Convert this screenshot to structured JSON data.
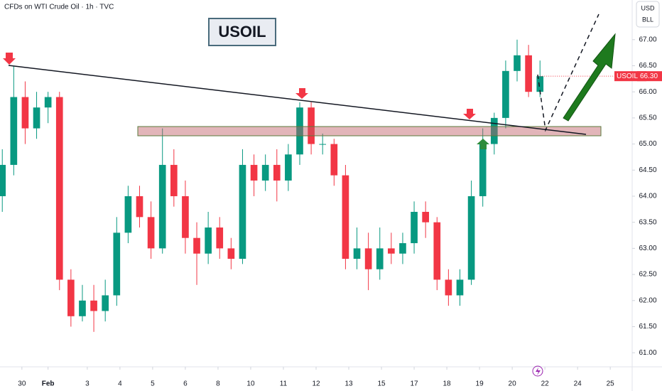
{
  "chart_data": {
    "type": "candlestick",
    "title": "CFDs on WTI Crude Oil · 1h · TVC",
    "symbol": "USOIL",
    "currency": "USD",
    "unit": "BLL",
    "last_price": {
      "value": 66.3,
      "label": "66.30"
    },
    "up_color": "#089981",
    "down_color": "#f23645",
    "xlim": [
      -0.67,
      18.67
    ],
    "xticks": [
      {
        "value": 0,
        "label": "30"
      },
      {
        "value": 0.8,
        "label": "Feb"
      },
      {
        "value": 2,
        "label": "3"
      },
      {
        "value": 3,
        "label": "4"
      },
      {
        "value": 4,
        "label": "5"
      },
      {
        "value": 5,
        "label": "6"
      },
      {
        "value": 6,
        "label": "8"
      },
      {
        "value": 7,
        "label": "10"
      },
      {
        "value": 8,
        "label": "11"
      },
      {
        "value": 9,
        "label": "12"
      },
      {
        "value": 10,
        "label": "13"
      },
      {
        "value": 11,
        "label": "15"
      },
      {
        "value": 12,
        "label": "17"
      },
      {
        "value": 13,
        "label": "18"
      },
      {
        "value": 14,
        "label": "19"
      },
      {
        "value": 15,
        "label": "20"
      },
      {
        "value": 16,
        "label": "22"
      },
      {
        "value": 17,
        "label": "24"
      },
      {
        "value": 18,
        "label": "25"
      }
    ],
    "ylim": [
      60.73,
      67.76
    ],
    "yticks": [
      {
        "value": 61,
        "label": "61.00"
      },
      {
        "value": 61.5,
        "label": "61.50"
      },
      {
        "value": 62,
        "label": "62.00"
      },
      {
        "value": 62.5,
        "label": "62.50"
      },
      {
        "value": 63,
        "label": "63.00"
      },
      {
        "value": 63.5,
        "label": "63.50"
      },
      {
        "value": 64,
        "label": "64.00"
      },
      {
        "value": 64.5,
        "label": "64.50"
      },
      {
        "value": 65,
        "label": "65.00"
      },
      {
        "value": 65.5,
        "label": "65.50"
      },
      {
        "value": 66,
        "label": "66.00"
      },
      {
        "value": 66.5,
        "label": "66.50"
      },
      {
        "value": 67,
        "label": "67.00"
      }
    ],
    "x": [
      -0.6,
      -0.25,
      0.1,
      0.45,
      0.8,
      1.15,
      1.5,
      1.85,
      2.2,
      2.55,
      2.9,
      3.25,
      3.6,
      3.95,
      4.3,
      4.65,
      5.0,
      5.35,
      5.7,
      6.05,
      6.4,
      6.75,
      7.1,
      7.45,
      7.8,
      8.15,
      8.5,
      8.85,
      9.2,
      9.55,
      9.9,
      10.25,
      10.6,
      10.95,
      11.3,
      11.65,
      12.0,
      12.35,
      12.7,
      13.05,
      13.4,
      13.75,
      14.1,
      14.45,
      14.8,
      15.15,
      15.5,
      15.85
    ],
    "open": [
      64.0,
      64.6,
      65.9,
      65.3,
      65.7,
      65.9,
      62.4,
      61.7,
      62.0,
      61.8,
      62.1,
      63.3,
      64.0,
      63.6,
      63.0,
      64.6,
      64.0,
      63.2,
      62.9,
      63.4,
      63.0,
      62.8,
      64.6,
      64.3,
      64.6,
      64.3,
      64.8,
      65.7,
      65.0,
      65.0,
      64.4,
      62.8,
      63.0,
      62.6,
      63.0,
      62.9,
      63.1,
      63.7,
      63.5,
      62.4,
      62.1,
      62.4,
      64.0,
      65.0,
      65.5,
      66.4,
      66.7,
      66.0
    ],
    "high": [
      64.9,
      66.5,
      66.2,
      66.0,
      66.0,
      66.0,
      62.6,
      62.3,
      62.3,
      62.4,
      63.6,
      64.2,
      64.2,
      63.9,
      65.3,
      64.9,
      64.3,
      63.5,
      63.7,
      63.6,
      63.2,
      64.9,
      64.8,
      64.8,
      64.9,
      65.0,
      65.8,
      65.8,
      65.2,
      65.1,
      64.6,
      63.4,
      63.3,
      63.4,
      63.3,
      63.3,
      63.9,
      63.9,
      63.6,
      62.6,
      62.6,
      64.3,
      65.3,
      65.6,
      66.6,
      67.0,
      66.9,
      66.6
    ],
    "low": [
      63.7,
      64.4,
      65.0,
      65.1,
      65.4,
      62.2,
      61.5,
      61.6,
      61.4,
      61.6,
      61.9,
      63.1,
      63.4,
      62.8,
      62.9,
      63.8,
      62.9,
      62.3,
      62.7,
      62.8,
      62.6,
      62.7,
      64.0,
      64.1,
      63.9,
      64.1,
      64.6,
      64.8,
      64.8,
      64.2,
      62.6,
      62.6,
      62.2,
      62.4,
      62.7,
      62.7,
      62.9,
      63.2,
      62.2,
      61.9,
      61.9,
      62.3,
      63.8,
      64.8,
      65.3,
      66.2,
      65.9,
      65.9
    ],
    "close": [
      64.6,
      65.9,
      65.3,
      65.7,
      65.9,
      62.4,
      61.7,
      62.0,
      61.8,
      62.1,
      63.3,
      64.0,
      63.6,
      63.0,
      64.6,
      64.0,
      63.2,
      62.9,
      63.4,
      63.0,
      62.8,
      64.6,
      64.3,
      64.6,
      64.3,
      64.8,
      65.7,
      65.0,
      65.0,
      64.4,
      62.8,
      63.0,
      62.6,
      63.0,
      62.9,
      63.1,
      63.7,
      63.5,
      62.4,
      62.1,
      62.4,
      64.0,
      65.0,
      65.5,
      66.4,
      66.7,
      66.0,
      66.3
    ]
  }
}
